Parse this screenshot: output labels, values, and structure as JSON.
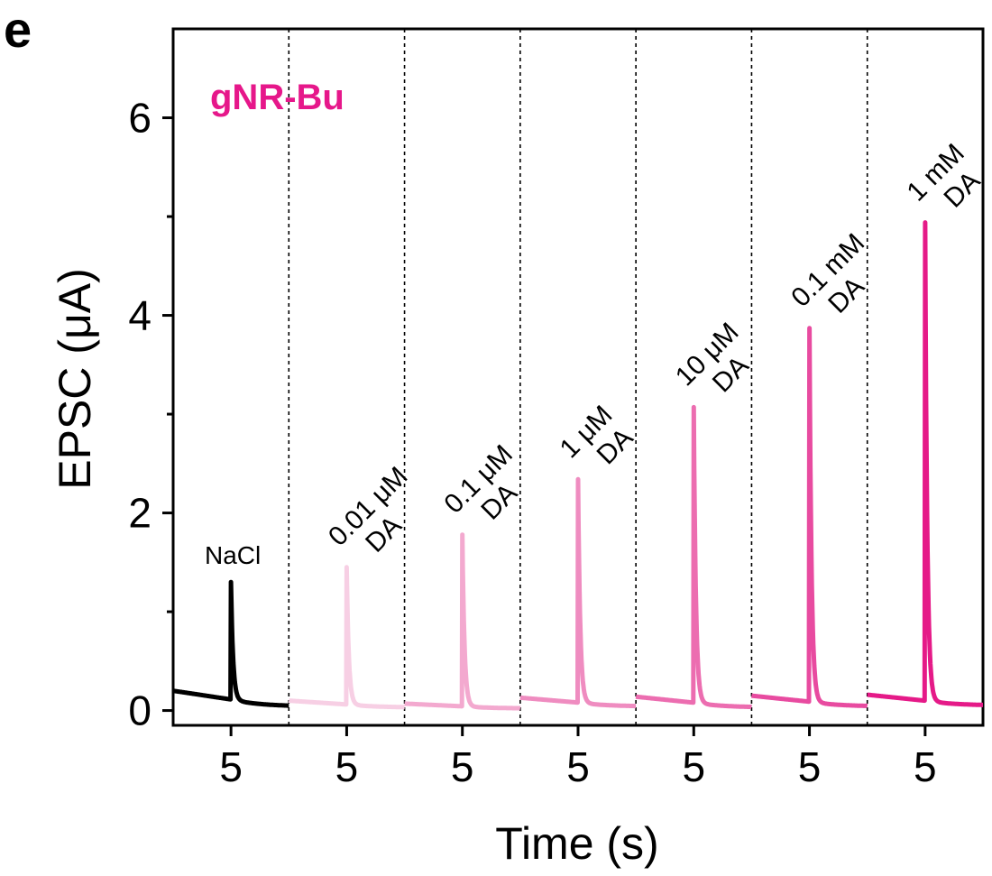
{
  "panel_label": "e",
  "chart_data": {
    "type": "line",
    "title": "gNR-Bu",
    "title_color": "#e6178a",
    "xlabel": "Time (s)",
    "ylabel": "EPSC (μA)",
    "ylim": [
      -0.15,
      6.9
    ],
    "yticks": [
      0,
      2,
      4,
      6
    ],
    "y_minor_ticks": [
      1,
      3,
      5
    ],
    "x_tick_label": "5",
    "segment_xlim": [
      0,
      10
    ],
    "series": [
      {
        "label": "NaCl",
        "color": "#000000",
        "peak_time": 5,
        "peak": 1.3,
        "base_start": 0.2,
        "base_end": 0.04
      },
      {
        "label": "0.01 μM\nDA",
        "color": "#f7cfe4",
        "peak_time": 5,
        "peak": 1.45,
        "base_start": 0.1,
        "base_end": 0.03
      },
      {
        "label": "0.1 μM\nDA",
        "color": "#f3a9cf",
        "peak_time": 5,
        "peak": 1.78,
        "base_start": 0.07,
        "base_end": 0.02
      },
      {
        "label": "1 μM\nDA",
        "color": "#ef8cc0",
        "peak_time": 5,
        "peak": 2.34,
        "base_start": 0.13,
        "base_end": 0.04
      },
      {
        "label": "10 μM\nDA",
        "color": "#ec6db0",
        "peak_time": 5,
        "peak": 3.07,
        "base_start": 0.14,
        "base_end": 0.03
      },
      {
        "label": "0.1 mM\nDA",
        "color": "#e84ba0",
        "peak_time": 5,
        "peak": 3.87,
        "base_start": 0.15,
        "base_end": 0.04
      },
      {
        "label": "1 mM\nDA",
        "color": "#e51a88",
        "peak_time": 5,
        "peak": 4.94,
        "base_start": 0.16,
        "base_end": 0.05
      }
    ]
  }
}
